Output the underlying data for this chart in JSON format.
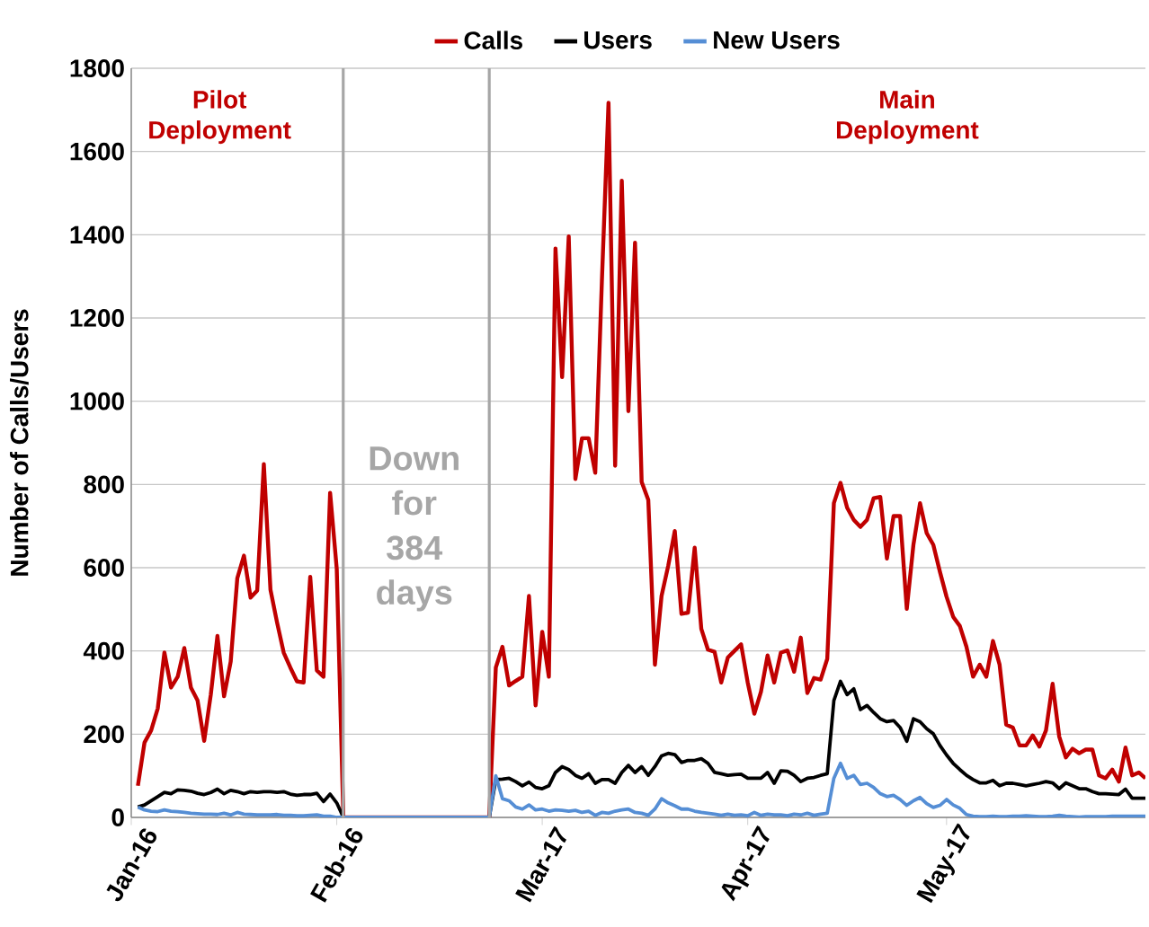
{
  "chart_data": {
    "type": "line",
    "ylabel": "Number of Calls/Users",
    "legend": "top",
    "grid": "y",
    "ylim": [
      0,
      1800
    ],
    "yticks": [
      0,
      200,
      400,
      600,
      800,
      1000,
      1200,
      1400,
      1600,
      1800
    ],
    "categories": [
      "Jan-16",
      null,
      null,
      null,
      null,
      null,
      null,
      null,
      null,
      null,
      null,
      null,
      null,
      null,
      null,
      null,
      null,
      null,
      null,
      null,
      null,
      null,
      null,
      null,
      null,
      null,
      null,
      null,
      null,
      null,
      null,
      "Feb-16",
      null,
      null,
      null,
      null,
      null,
      null,
      null,
      null,
      null,
      null,
      null,
      null,
      null,
      null,
      null,
      null,
      null,
      null,
      null,
      null,
      null,
      null,
      null,
      null,
      null,
      null,
      null,
      null,
      null,
      null,
      "Mar-17",
      null,
      null,
      null,
      null,
      null,
      null,
      null,
      null,
      null,
      null,
      null,
      null,
      null,
      null,
      null,
      null,
      null,
      null,
      null,
      null,
      null,
      null,
      null,
      null,
      null,
      null,
      null,
      null,
      null,
      null,
      "Apr-17",
      null,
      null,
      null,
      null,
      null,
      null,
      null,
      null,
      null,
      null,
      null,
      null,
      null,
      null,
      null,
      null,
      null,
      null,
      null,
      null,
      null,
      null,
      null,
      null,
      null,
      null,
      null,
      null,
      null,
      "May-17",
      null,
      null,
      null,
      null,
      null,
      null,
      null,
      null,
      null,
      null,
      null,
      null,
      null,
      null,
      null,
      null,
      null,
      null,
      null,
      null,
      null,
      null,
      null,
      null,
      null,
      null,
      null,
      null,
      null,
      null
    ],
    "annotations": [
      "Pilot Deployment",
      "Main Deployment",
      "Down for 384 days"
    ],
    "series": [
      {
        "name": "Calls",
        "color": "#c00000",
        "values": [
          null,
          76,
          180,
          209,
          262,
          396,
          312,
          338,
          407,
          312,
          281,
          184,
          295,
          436,
          291,
          374,
          575,
          629,
          528,
          545,
          849,
          547,
          468,
          396,
          360,
          327,
          324,
          578,
          353,
          338,
          780,
          597,
          0,
          0,
          0,
          0,
          0,
          0,
          0,
          0,
          0,
          0,
          0,
          0,
          0,
          0,
          0,
          0,
          0,
          0,
          0,
          0,
          0,
          0,
          0,
          360,
          410,
          317,
          328,
          338,
          532,
          269,
          446,
          338,
          1367,
          1058,
          1396,
          813,
          911,
          911,
          828,
          1288,
          1717,
          845,
          1530,
          976,
          1381,
          806,
          763,
          367,
          532,
          604,
          688,
          489,
          492,
          648,
          453,
          403,
          398,
          324,
          384,
          400,
          416,
          324,
          249,
          302,
          389,
          324,
          396,
          401,
          350,
          432,
          299,
          335,
          331,
          381,
          755,
          804,
          744,
          715,
          698,
          715,
          767,
          770,
          622,
          724,
          724,
          501,
          655,
          755,
          683,
          655,
          590,
          530,
          482,
          460,
          410,
          338,
          367,
          338,
          424,
          367,
          223,
          216,
          173,
          173,
          197,
          170,
          209,
          321,
          194,
          144,
          165,
          154,
          163,
          163,
          101,
          94,
          115,
          86,
          168,
          101,
          108,
          94
        ]
      },
      {
        "name": "Users",
        "color": "#000000",
        "values": [
          null,
          25,
          30,
          40,
          50,
          60,
          57,
          66,
          65,
          63,
          58,
          55,
          60,
          68,
          57,
          65,
          62,
          57,
          62,
          60,
          62,
          62,
          60,
          62,
          56,
          53,
          55,
          55,
          58,
          38,
          56,
          35,
          0,
          0,
          0,
          0,
          0,
          0,
          0,
          0,
          0,
          0,
          0,
          0,
          0,
          0,
          0,
          0,
          0,
          0,
          0,
          0,
          0,
          0,
          0,
          91,
          92,
          94,
          86,
          76,
          85,
          72,
          69,
          76,
          108,
          122,
          115,
          101,
          94,
          105,
          82,
          91,
          91,
          82,
          108,
          125,
          108,
          122,
          101,
          122,
          148,
          154,
          151,
          132,
          137,
          137,
          141,
          130,
          108,
          105,
          101,
          103,
          104,
          94,
          94,
          94,
          108,
          82,
          112,
          111,
          101,
          86,
          94,
          96,
          101,
          105,
          281,
          327,
          295,
          309,
          259,
          269,
          252,
          237,
          230,
          233,
          216,
          183,
          237,
          230,
          213,
          201,
          173,
          150,
          130,
          115,
          101,
          91,
          83,
          83,
          89,
          76,
          82,
          82,
          79,
          76,
          79,
          82,
          86,
          83,
          69,
          83,
          76,
          69,
          69,
          62,
          57,
          57,
          56,
          55,
          68,
          46,
          46,
          46
        ]
      },
      {
        "name": "New Users",
        "color": "#558ed5",
        "values": [
          null,
          25,
          18,
          15,
          14,
          18,
          15,
          14,
          12,
          10,
          9,
          8,
          8,
          7,
          10,
          6,
          12,
          8,
          7,
          6,
          6,
          6,
          7,
          5,
          5,
          4,
          4,
          5,
          6,
          3,
          3,
          0,
          0,
          0,
          0,
          0,
          0,
          0,
          0,
          0,
          0,
          0,
          0,
          0,
          0,
          0,
          0,
          0,
          0,
          0,
          0,
          0,
          0,
          0,
          0,
          100,
          45,
          40,
          25,
          20,
          30,
          18,
          20,
          15,
          18,
          17,
          15,
          17,
          12,
          15,
          5,
          12,
          10,
          15,
          18,
          20,
          12,
          10,
          5,
          20,
          45,
          35,
          28,
          20,
          20,
          15,
          12,
          10,
          8,
          5,
          8,
          5,
          6,
          4,
          12,
          5,
          8,
          6,
          6,
          4,
          8,
          6,
          10,
          5,
          8,
          10,
          94,
          130,
          94,
          101,
          79,
          82,
          72,
          57,
          50,
          53,
          43,
          29,
          40,
          48,
          33,
          24,
          29,
          43,
          30,
          22,
          7,
          3,
          2,
          2,
          3,
          2,
          2,
          3,
          3,
          4,
          3,
          2,
          2,
          3,
          5,
          3,
          2,
          1,
          2,
          2,
          2,
          2,
          3,
          3,
          3,
          3,
          3,
          3
        ]
      }
    ]
  }
}
